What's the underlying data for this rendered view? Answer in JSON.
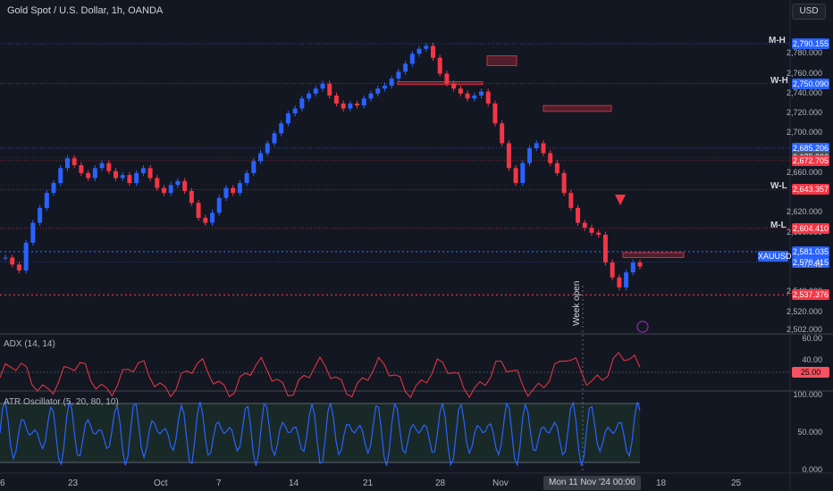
{
  "chart": {
    "title": "Gold Spot / U.S. Dollar, 1h, OANDA",
    "currency_button": "USD",
    "symbol": "XAUUSD",
    "countdown": "07:46"
  },
  "colors": {
    "background": "#131722",
    "up": "#2962ff",
    "down": "#f23645",
    "panel_border": "#2a2e39",
    "adx": "#f23645",
    "atr": "#2962ff"
  },
  "price_axis": {
    "ticks": [
      "2,780.000",
      "2,760.000",
      "2,740.000",
      "2,720.000",
      "2,700.000",
      "2,660.000",
      "2,620.000",
      "2,600.000",
      "2,540.000",
      "2,520.000",
      "2,502.000"
    ],
    "tick_values": [
      2780,
      2760,
      2740,
      2720,
      2700,
      2660,
      2620,
      2600,
      2540,
      2520,
      2502
    ]
  },
  "levels": [
    {
      "label": "M-H",
      "price": 2790.155,
      "tag": "2,790.155",
      "tag_color": "#2962ff"
    },
    {
      "label": "W-H",
      "price": 2750.09,
      "tag": "2,750.090",
      "tag_color": "#2962ff"
    },
    {
      "label": "",
      "price": 2685.206,
      "tag": "2,685.206",
      "tag_color": "#2962ff"
    },
    {
      "label": "",
      "price": 2675.866,
      "tag": "2,675.866",
      "tag_color": "#4c525e"
    },
    {
      "label": "",
      "price": 2672.705,
      "tag": "2,672.705",
      "tag_color": "#f23645"
    },
    {
      "label": "W-L",
      "price": 2643.357,
      "tag": "2,643.357",
      "tag_color": "#f23645"
    },
    {
      "label": "M-L",
      "price": 2604.41,
      "tag": "2,604.410",
      "tag_color": "#f23645"
    },
    {
      "label": "",
      "price": 2581.035,
      "tag": "2,581.035",
      "tag_color": "#2962ff"
    },
    {
      "label": "",
      "price": 2570.415,
      "tag": "2,570.415",
      "tag_color": "#2962ff"
    },
    {
      "label": "",
      "price": 2537.376,
      "tag": "2,537.376",
      "tag_color": "#f23645"
    }
  ],
  "x_axis": {
    "ticks": [
      "6",
      "23",
      "Oct",
      "7",
      "14",
      "21",
      "28",
      "Nov",
      "",
      "Mon 11 Nov '24",
      "00:00",
      "25"
    ],
    "highlight": "Mon 11 Nov '24   00:00"
  },
  "annotations": {
    "week_open": "Week open"
  },
  "adx": {
    "label": "ADX (14, 14)",
    "ticks": [
      "60.00",
      "40.00"
    ],
    "value_tag": "25.00"
  },
  "atr": {
    "label": "ATR Oscillator (5, 20, 80, 10)",
    "ticks": [
      "100.000",
      "50.000",
      "0.000"
    ]
  },
  "chart_data": {
    "type": "candlestick",
    "instrument": "XAUUSD",
    "timeframe": "1h",
    "close_path": [
      2575,
      2568,
      2562,
      2590,
      2610,
      2625,
      2640,
      2650,
      2665,
      2675,
      2668,
      2660,
      2655,
      2665,
      2670,
      2662,
      2655,
      2658,
      2650,
      2660,
      2665,
      2655,
      2645,
      2640,
      2648,
      2652,
      2642,
      2630,
      2615,
      2610,
      2620,
      2635,
      2645,
      2640,
      2650,
      2660,
      2672,
      2680,
      2690,
      2700,
      2710,
      2720,
      2725,
      2735,
      2740,
      2745,
      2750,
      2738,
      2730,
      2725,
      2730,
      2728,
      2735,
      2740,
      2745,
      2748,
      2755,
      2762,
      2770,
      2780,
      2785,
      2788,
      2776,
      2760,
      2750,
      2745,
      2740,
      2735,
      2738,
      2742,
      2730,
      2710,
      2690,
      2665,
      2650,
      2670,
      2685,
      2690,
      2680,
      2670,
      2660,
      2640,
      2625,
      2610,
      2605,
      2600,
      2598,
      2570,
      2555,
      2545,
      2560,
      2570,
      2566
    ],
    "ylim": [
      2500,
      2800
    ]
  }
}
